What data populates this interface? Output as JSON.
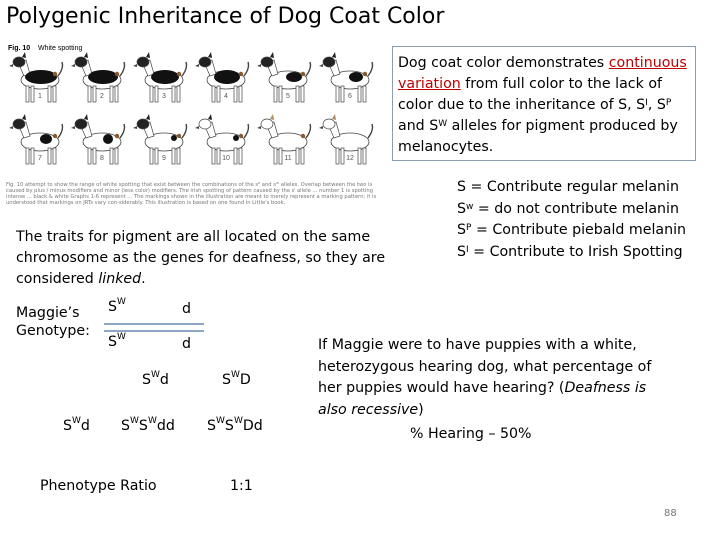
{
  "title": "Polygenic Inheritance of Dog Coat Color",
  "figure": {
    "label": "Fig. 10",
    "heading": "White spotting",
    "numbers": [
      "1",
      "2",
      "3",
      "4",
      "5",
      "6",
      "7",
      "8",
      "9",
      "10",
      "11",
      "12"
    ],
    "caption": "Fig. 10 attempt to show the range of white spotting that exist between the combinations of the sᴱ and sᵂ alleles. Overlap between the two is caused by plus / minus modifiers and minor (less color) modifiers. The irish spotting of pattern caused by the sᴵ allele ... number 1 is spotting intense ... black & white Graphs 1-6 represent ... The markings shown in the illustration are meant to merely represent a marking pattern; it is understood that markings on JRTs vary con-siderably. This illustration is based on one found in Little's book."
  },
  "intro": {
    "before": "Dog coat color demonstrates",
    "highlight": "continuous variation",
    "after": "from full color to the lack of color due to the inheritance of S, S",
    "after_i_sup": "I",
    "after2": ", S",
    "after_p_sup": "P",
    "after3": " and S",
    "after_w_sup": "W",
    "after4": " alleles for pigment produced by melanocytes."
  },
  "legend": [
    {
      "base": "S",
      "sup": "",
      "text": " = Contribute regular melanin"
    },
    {
      "base": "S",
      "sup": "w",
      "text": " = do not contribute melanin"
    },
    {
      "base": "S",
      "sup": "P",
      "text": " = Contribute piebald melanin"
    },
    {
      "base": "S",
      "sup": "I",
      "text": " = Contribute to Irish Spotting"
    }
  ],
  "traits": {
    "text": "The traits for pigment are all located on the same chromosome as the genes for deafness, so they are considered",
    "emph": "linked",
    "end": "."
  },
  "maggie": {
    "label_line1": "Maggie’s",
    "label_line2": "Genotype:",
    "row1_s": "S",
    "row1_sup": "W",
    "row1_d": "d",
    "row2_s": "S",
    "row2_sup": "W",
    "row2_d": "d"
  },
  "punnett": {
    "col1_base": "S",
    "col1_sup": "W",
    "col1_rest": "d",
    "col2_base": "S",
    "col2_sup": "W",
    "col2_rest": "D",
    "row_base": "S",
    "row_sup": "W",
    "row_rest": "d",
    "cell1": {
      "a": "S",
      "asup": "W",
      "b": "S",
      "bsup": "W",
      "rest": "dd"
    },
    "cell2": {
      "a": "S",
      "asup": "W",
      "b": "S",
      "bsup": "W",
      "rest": "Dd"
    }
  },
  "question": {
    "text": "If Maggie were to have puppies with a white, heterozygous hearing dog, what percentage of her puppies would have hearing? (",
    "emph": "Deafness is also recessive",
    "end": ")"
  },
  "hearing_answer": "% Hearing – 50%",
  "phenotype_label": "Phenotype Ratio",
  "phenotype_ratio": "1:1",
  "page_number": "88"
}
